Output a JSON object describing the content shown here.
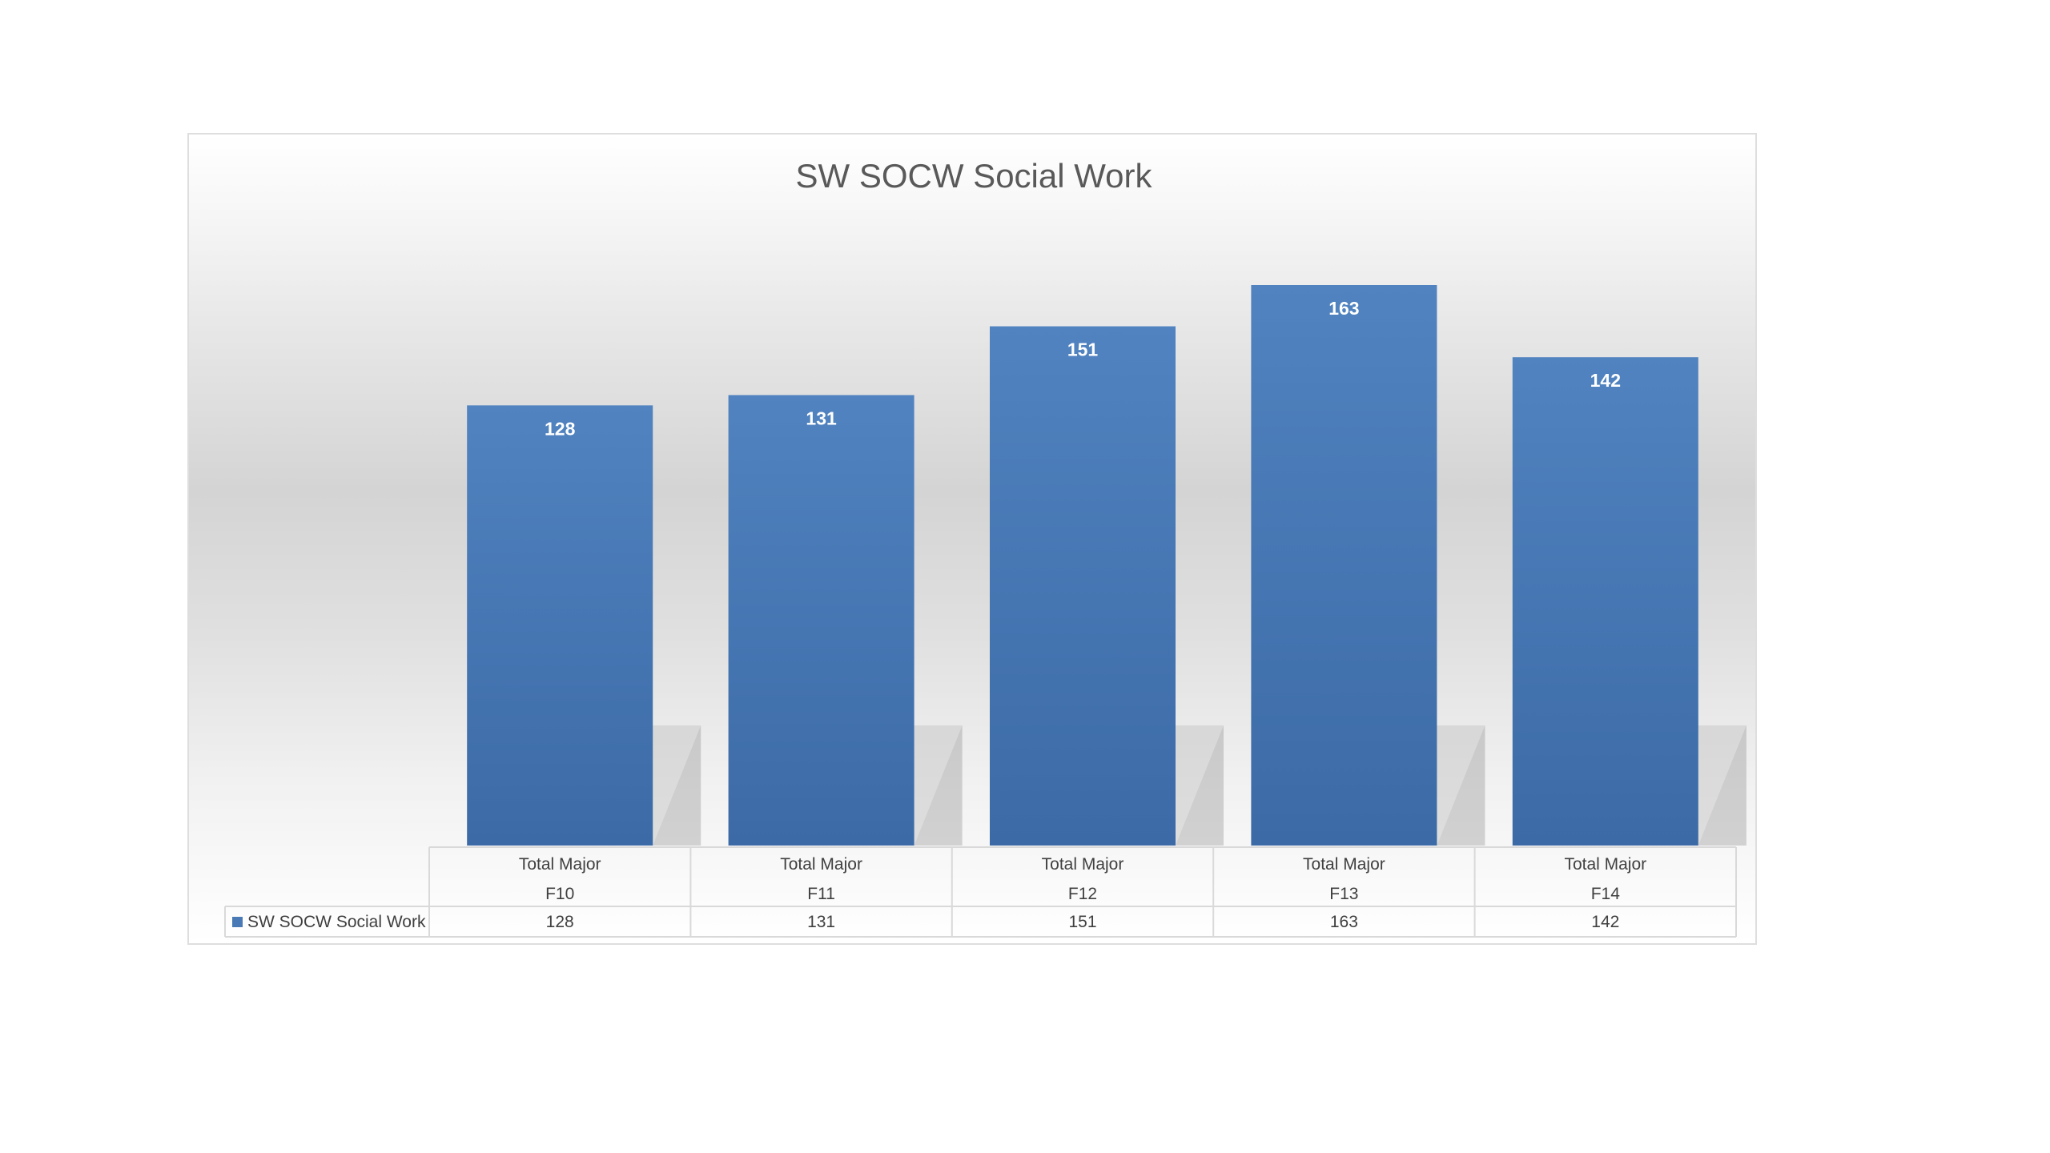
{
  "chart_data": {
    "type": "bar",
    "title": "SW SOCW Social Work",
    "categories": [
      "Total Major F10",
      "Total Major F11",
      "Total Major F12",
      "Total Major F13",
      "Total Major F14"
    ],
    "category_lines": [
      [
        "Total Major",
        "F10"
      ],
      [
        "Total Major",
        "F11"
      ],
      [
        "Total Major",
        "F12"
      ],
      [
        "Total Major",
        "F13"
      ],
      [
        "Total Major",
        "F14"
      ]
    ],
    "series": [
      {
        "name": "SW SOCW Social Work",
        "values": [
          128,
          131,
          151,
          163,
          142
        ],
        "color": "#4a7ab5"
      }
    ],
    "data_labels": [
      "128",
      "131",
      "151",
      "163",
      "142"
    ],
    "table_values": [
      "128",
      "131",
      "151",
      "163",
      "142"
    ],
    "ylim": [
      0,
      163
    ],
    "grid": false,
    "legend": "data-table",
    "style": "3d-bar-with-shadow"
  }
}
